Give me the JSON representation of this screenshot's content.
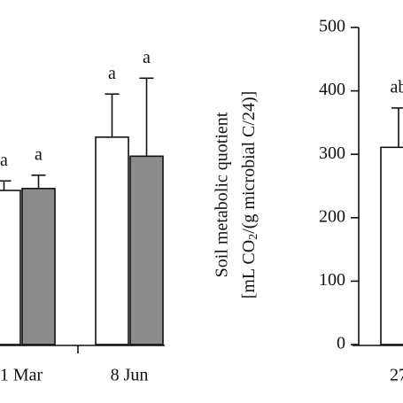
{
  "chart_data": [
    {
      "type": "bar",
      "categories": [
        "1 Mar",
        "8 Jun"
      ],
      "series": [
        {
          "color": "#ffffff",
          "values": [
            243,
            327
          ],
          "errors": [
            15,
            68
          ],
          "annotations": [
            "a",
            "a"
          ]
        },
        {
          "color": "#8c8c8c",
          "values": [
            246,
            297
          ],
          "errors": [
            21,
            123
          ],
          "annotations": [
            "a",
            "a"
          ]
        }
      ],
      "ylim": [
        0,
        500
      ]
    },
    {
      "type": "bar",
      "categories": [
        "27"
      ],
      "ylabel": [
        "Soil metabolic quotient",
        "[mL CO",
        "2",
        "/(g microbial C/24)]"
      ],
      "series": [
        {
          "color": "#ffffff",
          "values": [
            311
          ],
          "errors": [
            62
          ],
          "annotations": [
            "ab"
          ]
        }
      ],
      "ylim": [
        0,
        500
      ],
      "yticks": [
        0,
        100,
        200,
        300,
        400,
        500
      ]
    }
  ]
}
